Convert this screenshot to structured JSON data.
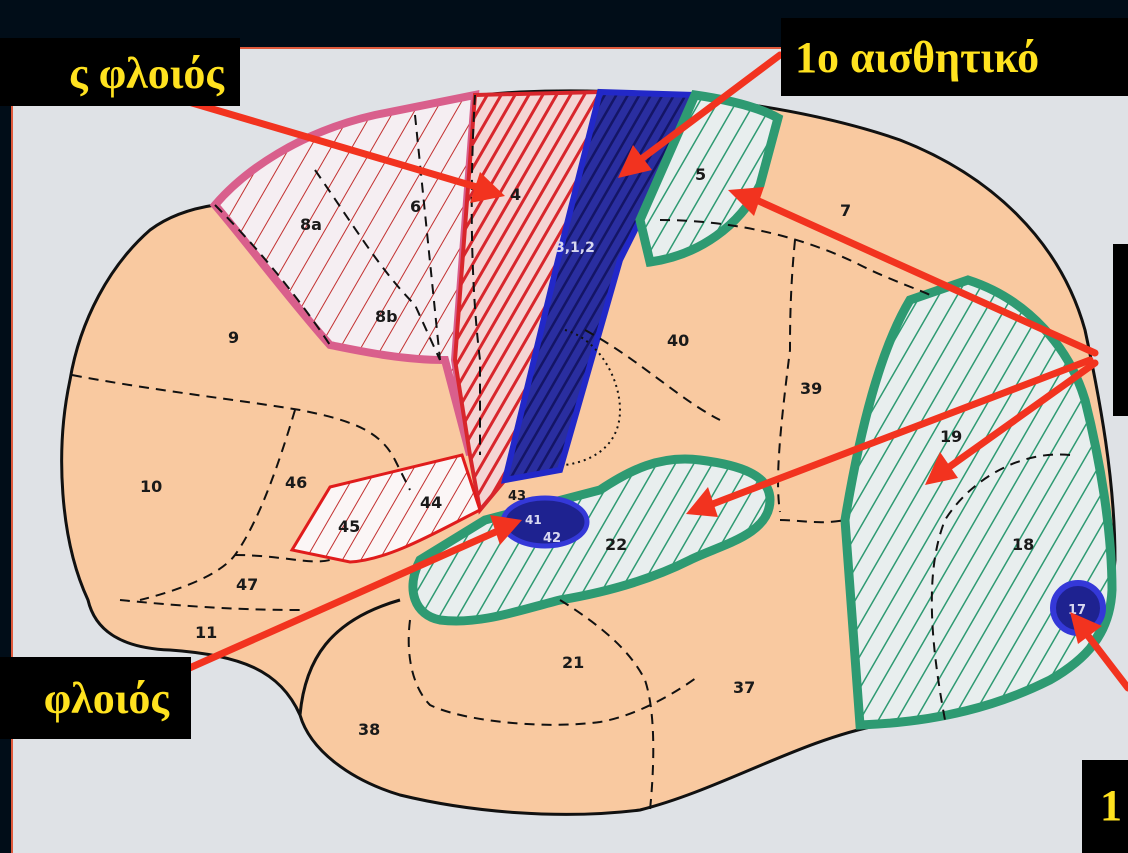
{
  "labels": {
    "motor_cortex": "ς φλοιός",
    "primary_sensory": "1ο αισθητικό",
    "auditory_cortex": "φλοιός",
    "visual_corner": "1"
  },
  "areas": {
    "a1": "4",
    "a2": "6",
    "a3": "8a",
    "a4": "8b",
    "a5": "9",
    "a6": "10",
    "a7": "46",
    "a8": "44",
    "a9": "45",
    "a10": "47",
    "a11": "11",
    "a12": "3,1,2",
    "a13": "5",
    "a14": "7",
    "a15": "40",
    "a16": "39",
    "a17": "19",
    "a18": "18",
    "a19": "17",
    "a20": "43",
    "a21": "42",
    "a22": "22",
    "a23": "21",
    "a24": "37",
    "a25": "38",
    "a26": "41"
  },
  "colors": {
    "background": "#010d18",
    "paper": "#dfe2e6",
    "cortex": "#f9c9a0",
    "motor_red": "#d8262c",
    "premotor_pink": "#d95f8c",
    "sensory_blue": "#1a1d8c",
    "association_green": "#2e9a72",
    "arrow": "#f2331f",
    "label_text": "#ffe21f"
  }
}
